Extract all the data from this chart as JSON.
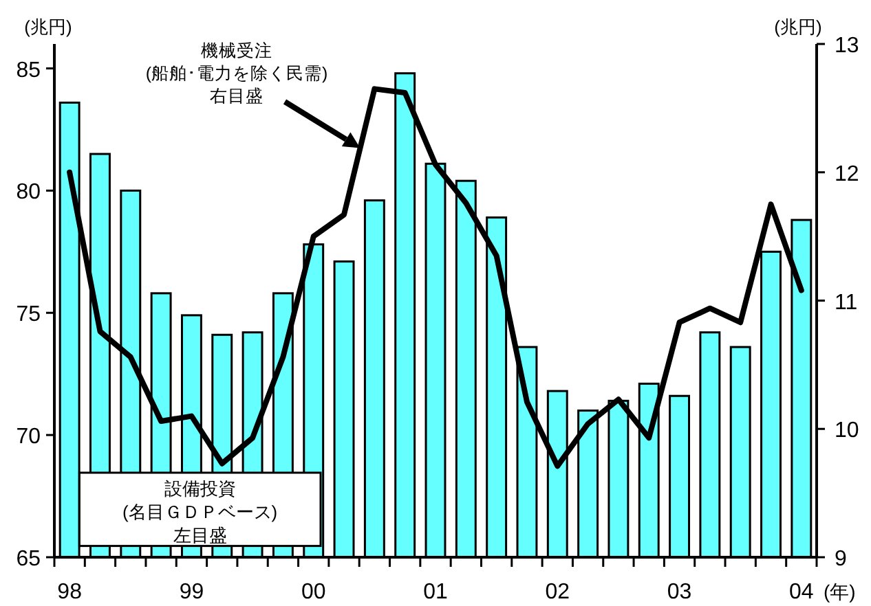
{
  "chart_data": {
    "type": "bar",
    "categories": [
      "98",
      null,
      null,
      null,
      "99",
      null,
      null,
      null,
      "00",
      null,
      null,
      null,
      "01",
      null,
      null,
      null,
      "02",
      null,
      null,
      null,
      "03",
      null,
      null,
      null,
      "04"
    ],
    "xlabel": "(年)",
    "ylabel": "(兆円)",
    "y2label": "(兆円)",
    "series": [
      {
        "name": "設備投資\n(名目ＧＤＰベース)\n左目盛",
        "color": "#66ffff",
        "values": [
          83.6,
          81.5,
          80.0,
          75.8,
          74.9,
          74.1,
          74.2,
          75.8,
          77.8,
          77.1,
          79.6,
          84.8,
          81.1,
          80.4,
          78.9,
          73.6,
          71.8,
          71.0,
          71.4,
          72.1,
          71.6,
          74.2,
          73.6,
          77.5,
          78.8
        ]
      },
      {
        "name": "機械受注\n(船舶･電力を除く民需)\n右目盛",
        "type": "line",
        "axis": "y2",
        "color": "#000000",
        "values": [
          12.0,
          10.76,
          10.56,
          10.06,
          10.1,
          9.73,
          9.93,
          10.56,
          11.5,
          11.67,
          12.65,
          12.62,
          12.06,
          11.76,
          11.35,
          10.21,
          9.71,
          10.04,
          10.23,
          9.93,
          10.83,
          10.94,
          10.83,
          11.75,
          11.08
        ]
      }
    ],
    "ylim": [
      65,
      86
    ],
    "yticks": [
      65,
      70,
      75,
      80,
      85
    ],
    "y2lim": [
      9,
      13
    ],
    "y2ticks": [
      9,
      10,
      11,
      12,
      13
    ]
  }
}
